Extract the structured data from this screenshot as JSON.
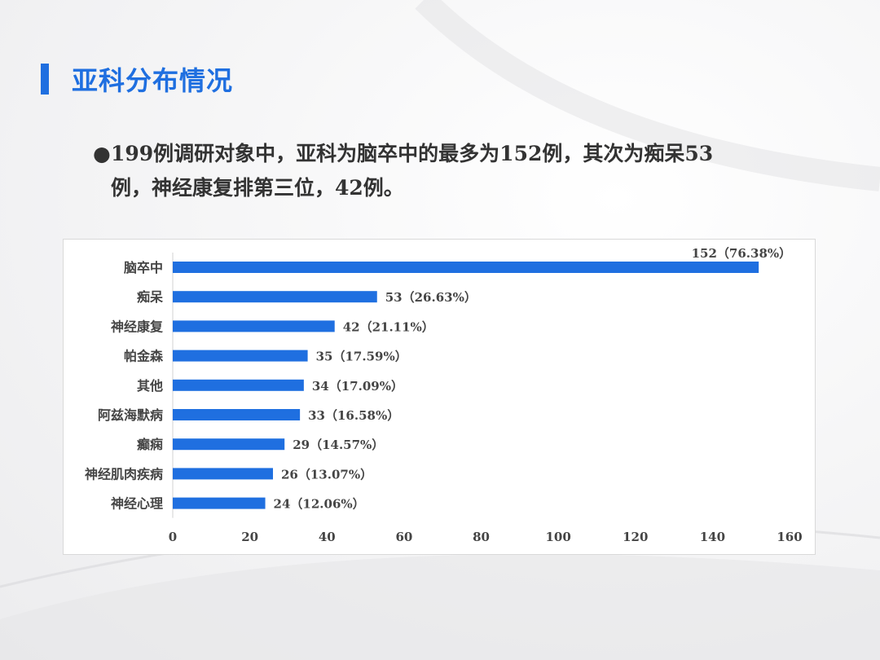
{
  "title": "亚科分布情况",
  "bullet": {
    "line1": "199例调研对象中，亚科为脑卒中的最多为152例，其次为痴呆53",
    "line2": "例，神经康复排第三位，42例。"
  },
  "chart_data": {
    "type": "bar",
    "orientation": "horizontal",
    "categories": [
      "脑卒中",
      "痴呆",
      "神经康复",
      "帕金森",
      "其他",
      "阿兹海默病",
      "癫痫",
      "神经肌肉疾病",
      "神经心理"
    ],
    "values": [
      152,
      53,
      42,
      35,
      34,
      33,
      29,
      26,
      24
    ],
    "data_labels": [
      "152（76.38%）",
      "53（26.63%）",
      "42（21.11%）",
      "35（17.59%）",
      "34（17.09%）",
      "33（16.58%）",
      "29（14.57%）",
      "26（13.07%）",
      "24（12.06%）"
    ],
    "xlim": [
      0,
      160
    ],
    "xticks": [
      0,
      20,
      40,
      60,
      80,
      100,
      120,
      140,
      160
    ],
    "grid": false,
    "bar_color": "#1f6fe0"
  }
}
